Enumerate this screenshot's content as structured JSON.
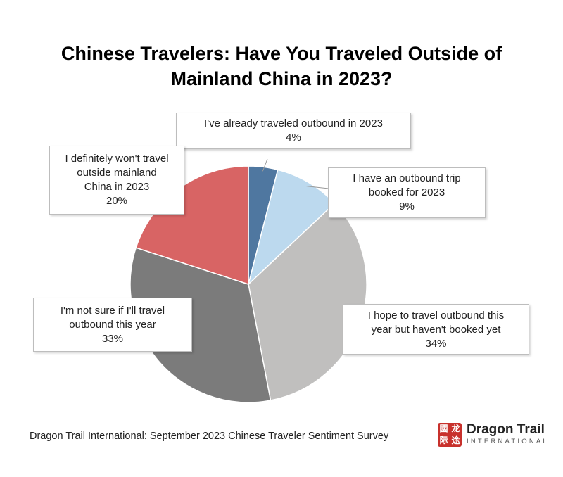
{
  "title": {
    "line1": "Chinese Travelers: Have You Traveled Outside of",
    "line2": "Mainland China in 2023?"
  },
  "chart_data": {
    "type": "pie",
    "start": "12 o'clock",
    "direction": "clockwise",
    "slices": [
      {
        "label": "I've already traveled outbound in 2023",
        "value": 4,
        "value_label": "4%",
        "color": "#4f77a0"
      },
      {
        "label": "I have an outbound trip booked for 2023",
        "value": 9,
        "value_label": "9%",
        "color": "#bcd9ee"
      },
      {
        "label": "I hope to travel outbound this year but haven't booked yet",
        "value": 34,
        "value_label": "34%",
        "color": "#c0bfbe"
      },
      {
        "label": "I'm not sure if I'll travel outbound this year",
        "value": 33,
        "value_label": "33%",
        "color": "#7b7b7b"
      },
      {
        "label": "I definitely won't travel outside mainland China in 2023",
        "value": 20,
        "value_label": "20%",
        "color": "#d86464"
      }
    ]
  },
  "callouts": [
    {
      "lines": [
        "I've already traveled outbound in 2023"
      ],
      "pct": "4%"
    },
    {
      "lines": [
        "I have an outbound trip",
        "booked for 2023"
      ],
      "pct": "9%"
    },
    {
      "lines": [
        "I hope to travel outbound this",
        "year but haven't booked yet"
      ],
      "pct": "34%"
    },
    {
      "lines": [
        "I'm not sure if I'll travel",
        "outbound this year"
      ],
      "pct": "33%"
    },
    {
      "lines": [
        "I definitely won't travel",
        "outside mainland",
        "China in 2023"
      ],
      "pct": "20%"
    }
  ],
  "footer": {
    "source": "Dragon Trail International: September 2023 Chinese Traveler Sentiment Survey"
  },
  "logo": {
    "name": "Dragon Trail",
    "subtitle": "INTERNATIONAL",
    "seal_chars": [
      "國",
      "龙",
      "际",
      "途"
    ],
    "color": "#c8312c"
  }
}
